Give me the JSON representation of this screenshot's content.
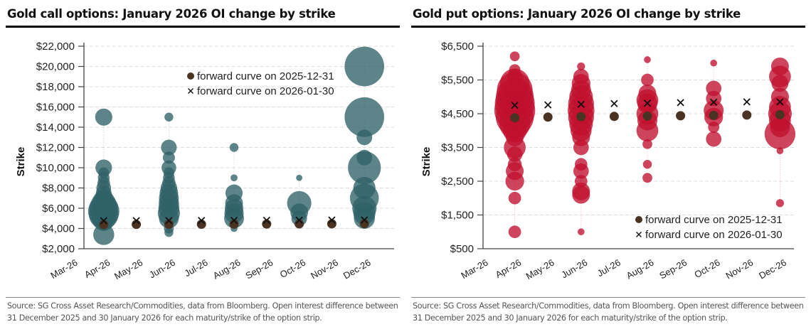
{
  "colors": {
    "call_bubble": "#2f6168",
    "put_bubble": "#c0102e",
    "forward_dot": "#4a3323",
    "forward_x": "#111111",
    "grid": "#dddddd",
    "axis": "#444444"
  },
  "chart_data": [
    {
      "type": "scatter",
      "title": "Gold call options: January 2026 OI change by strike",
      "xlabel": "",
      "ylabel": "Strike",
      "ylim": [
        2000,
        22000
      ],
      "yticks": [
        2000,
        4000,
        6000,
        8000,
        10000,
        12000,
        14000,
        16000,
        18000,
        20000,
        22000
      ],
      "ytick_labels": [
        "$2,000",
        "$4,000",
        "$6,000",
        "$8,000",
        "$10,000",
        "$12,000",
        "$14,000",
        "$16,000",
        "$18,000",
        "$20,000",
        "$22,000"
      ],
      "categories": [
        "Mar-26",
        "Apr-26",
        "May-26",
        "Jun-26",
        "Jul-26",
        "Aug-26",
        "Sep-26",
        "Oct-26",
        "Nov-26",
        "Dec-26"
      ],
      "grid": true,
      "legend_position": "top-right",
      "legend": [
        "forward curve on 2025-12-31",
        "forward curve on 2026-01-30"
      ],
      "source": "Source: SG Cross Asset Research/Commodities, data from Bloomberg. Open interest difference between 31 December 2025 and 30 January 2026 for each maturity/strike of the option strip.",
      "series": [
        {
          "name": "forward curve on 2025-12-31",
          "marker": "dot",
          "points": [
            {
              "x": "Apr-26",
              "y": 4380
            },
            {
              "x": "May-26",
              "y": 4400
            },
            {
              "x": "Jun-26",
              "y": 4410
            },
            {
              "x": "Jul-26",
              "y": 4420
            },
            {
              "x": "Aug-26",
              "y": 4430
            },
            {
              "x": "Sep-26",
              "y": 4440
            },
            {
              "x": "Oct-26",
              "y": 4450
            },
            {
              "x": "Nov-26",
              "y": 4460
            },
            {
              "x": "Dec-26",
              "y": 4470
            }
          ]
        },
        {
          "name": "forward curve on 2026-01-30",
          "marker": "x",
          "points": [
            {
              "x": "Apr-26",
              "y": 4760
            },
            {
              "x": "May-26",
              "y": 4770
            },
            {
              "x": "Jun-26",
              "y": 4780
            },
            {
              "x": "Jul-26",
              "y": 4790
            },
            {
              "x": "Aug-26",
              "y": 4800
            },
            {
              "x": "Sep-26",
              "y": 4810
            },
            {
              "x": "Oct-26",
              "y": 4820
            },
            {
              "x": "Nov-26",
              "y": 4830
            },
            {
              "x": "Dec-26",
              "y": 4840
            }
          ]
        },
        {
          "name": "OI change",
          "marker": "bubble",
          "points": [
            {
              "x": "Apr-26",
              "y": 15000,
              "size": 0.3
            },
            {
              "x": "Apr-26",
              "y": 10000,
              "size": 0.28
            },
            {
              "x": "Apr-26",
              "y": 9500,
              "size": 0.12
            },
            {
              "x": "Apr-26",
              "y": 9000,
              "size": 0.14
            },
            {
              "x": "Apr-26",
              "y": 8500,
              "size": 0.16
            },
            {
              "x": "Apr-26",
              "y": 8000,
              "size": 0.22
            },
            {
              "x": "Apr-26",
              "y": 7500,
              "size": 0.25
            },
            {
              "x": "Apr-26",
              "y": 7000,
              "size": 0.35
            },
            {
              "x": "Apr-26",
              "y": 6500,
              "size": 0.6
            },
            {
              "x": "Apr-26",
              "y": 6000,
              "size": 0.85
            },
            {
              "x": "Apr-26",
              "y": 5700,
              "size": 1.0
            },
            {
              "x": "Apr-26",
              "y": 5400,
              "size": 0.9
            },
            {
              "x": "Apr-26",
              "y": 5000,
              "size": 0.6
            },
            {
              "x": "Apr-26",
              "y": 4600,
              "size": 0.3
            },
            {
              "x": "Apr-26",
              "y": 3400,
              "size": 0.45
            },
            {
              "x": "Jun-26",
              "y": 15000,
              "size": 0.08
            },
            {
              "x": "Jun-26",
              "y": 12000,
              "size": 0.25
            },
            {
              "x": "Jun-26",
              "y": 11000,
              "size": 0.15
            },
            {
              "x": "Jun-26",
              "y": 10000,
              "size": 0.22
            },
            {
              "x": "Jun-26",
              "y": 9500,
              "size": 0.12
            },
            {
              "x": "Jun-26",
              "y": 9000,
              "size": 0.14
            },
            {
              "x": "Jun-26",
              "y": 8500,
              "size": 0.18
            },
            {
              "x": "Jun-26",
              "y": 8000,
              "size": 0.28
            },
            {
              "x": "Jun-26",
              "y": 7500,
              "size": 0.35
            },
            {
              "x": "Jun-26",
              "y": 7000,
              "size": 0.4
            },
            {
              "x": "Jun-26",
              "y": 6500,
              "size": 0.42
            },
            {
              "x": "Jun-26",
              "y": 6000,
              "size": 0.45
            },
            {
              "x": "Jun-26",
              "y": 5500,
              "size": 0.5
            },
            {
              "x": "Jun-26",
              "y": 5000,
              "size": 0.4
            },
            {
              "x": "Jun-26",
              "y": 4000,
              "size": 0.1
            },
            {
              "x": "Jun-26",
              "y": 3600,
              "size": 0.08
            },
            {
              "x": "Aug-26",
              "y": 12000,
              "size": 0.08
            },
            {
              "x": "Aug-26",
              "y": 9000,
              "size": 0.05
            },
            {
              "x": "Aug-26",
              "y": 7500,
              "size": 0.3
            },
            {
              "x": "Aug-26",
              "y": 6500,
              "size": 0.32
            },
            {
              "x": "Aug-26",
              "y": 6000,
              "size": 0.35
            },
            {
              "x": "Aug-26",
              "y": 5500,
              "size": 0.38
            },
            {
              "x": "Aug-26",
              "y": 5000,
              "size": 0.4
            },
            {
              "x": "Aug-26",
              "y": 4000,
              "size": 0.05
            },
            {
              "x": "Oct-26",
              "y": 9000,
              "size": 0.04
            },
            {
              "x": "Oct-26",
              "y": 6500,
              "size": 0.6
            },
            {
              "x": "Oct-26",
              "y": 5600,
              "size": 0.32
            },
            {
              "x": "Oct-26",
              "y": 5000,
              "size": 0.25
            },
            {
              "x": "Dec-26",
              "y": 20000,
              "size": 1.6
            },
            {
              "x": "Dec-26",
              "y": 15000,
              "size": 1.6
            },
            {
              "x": "Dec-26",
              "y": 13000,
              "size": 0.25
            },
            {
              "x": "Dec-26",
              "y": 11000,
              "size": 0.25
            },
            {
              "x": "Dec-26",
              "y": 10000,
              "size": 1.1
            },
            {
              "x": "Dec-26",
              "y": 8000,
              "size": 0.5
            },
            {
              "x": "Dec-26",
              "y": 7000,
              "size": 0.85
            },
            {
              "x": "Dec-26",
              "y": 6000,
              "size": 0.6
            },
            {
              "x": "Dec-26",
              "y": 5500,
              "size": 0.5
            },
            {
              "x": "Dec-26",
              "y": 5000,
              "size": 0.45
            }
          ]
        }
      ]
    },
    {
      "type": "scatter",
      "title": "Gold put options: January 2026 OI change by strike",
      "xlabel": "",
      "ylabel": "Strike",
      "ylim": [
        500,
        6500
      ],
      "yticks": [
        500,
        1500,
        2500,
        3500,
        4500,
        5500,
        6500
      ],
      "ytick_labels": [
        "$500",
        "$1,500",
        "$2,500",
        "$3,500",
        "$4,500",
        "$5,500",
        "$6,500"
      ],
      "categories": [
        "Mar-26",
        "Apr-26",
        "May-26",
        "Jun-26",
        "Jul-26",
        "Aug-26",
        "Sep-26",
        "Oct-26",
        "Nov-26",
        "Dec-26"
      ],
      "grid": true,
      "legend_position": "bottom-right",
      "legend": [
        "forward curve on 2025-12-31",
        "forward curve on 2026-01-30"
      ],
      "source": "Source: SG Cross Asset Research/Commodities, data from Bloomberg. Open interest difference between 31 December 2025 and 30 January 2026 for each maturity/strike of the option strip.",
      "series": [
        {
          "name": "forward curve on 2025-12-31",
          "marker": "dot",
          "points": [
            {
              "x": "Apr-26",
              "y": 4380
            },
            {
              "x": "May-26",
              "y": 4400
            },
            {
              "x": "Jun-26",
              "y": 4410
            },
            {
              "x": "Jul-26",
              "y": 4420
            },
            {
              "x": "Aug-26",
              "y": 4430
            },
            {
              "x": "Sep-26",
              "y": 4440
            },
            {
              "x": "Oct-26",
              "y": 4450
            },
            {
              "x": "Nov-26",
              "y": 4460
            },
            {
              "x": "Dec-26",
              "y": 4470
            }
          ]
        },
        {
          "name": "forward curve on 2026-01-30",
          "marker": "x",
          "points": [
            {
              "x": "Apr-26",
              "y": 4750
            },
            {
              "x": "May-26",
              "y": 4760
            },
            {
              "x": "Jun-26",
              "y": 4780
            },
            {
              "x": "Jul-26",
              "y": 4800
            },
            {
              "x": "Aug-26",
              "y": 4810
            },
            {
              "x": "Sep-26",
              "y": 4830
            },
            {
              "x": "Oct-26",
              "y": 4840
            },
            {
              "x": "Nov-26",
              "y": 4850
            },
            {
              "x": "Dec-26",
              "y": 4850
            }
          ]
        },
        {
          "name": "OI change",
          "marker": "bubble",
          "points": [
            {
              "x": "Apr-26",
              "y": 6200,
              "size": 0.06
            },
            {
              "x": "Apr-26",
              "y": 5800,
              "size": 0.08
            },
            {
              "x": "Apr-26",
              "y": 5600,
              "size": 0.15
            },
            {
              "x": "Apr-26",
              "y": 5400,
              "size": 0.55
            },
            {
              "x": "Apr-26",
              "y": 5200,
              "size": 0.8
            },
            {
              "x": "Apr-26",
              "y": 5000,
              "size": 0.9
            },
            {
              "x": "Apr-26",
              "y": 4800,
              "size": 1.0
            },
            {
              "x": "Apr-26",
              "y": 4600,
              "size": 1.05
            },
            {
              "x": "Apr-26",
              "y": 4400,
              "size": 0.9
            },
            {
              "x": "Apr-26",
              "y": 4200,
              "size": 0.6
            },
            {
              "x": "Apr-26",
              "y": 4000,
              "size": 0.35
            },
            {
              "x": "Apr-26",
              "y": 3800,
              "size": 0.2
            },
            {
              "x": "Apr-26",
              "y": 3500,
              "size": 0.3
            },
            {
              "x": "Apr-26",
              "y": 3300,
              "size": 0.15
            },
            {
              "x": "Apr-26",
              "y": 3000,
              "size": 0.12
            },
            {
              "x": "Apr-26",
              "y": 2800,
              "size": 0.2
            },
            {
              "x": "Apr-26",
              "y": 2500,
              "size": 0.22
            },
            {
              "x": "Apr-26",
              "y": 2000,
              "size": 0.1
            },
            {
              "x": "Apr-26",
              "y": 1000,
              "size": 0.1
            },
            {
              "x": "Jun-26",
              "y": 5900,
              "size": 0.04
            },
            {
              "x": "Jun-26",
              "y": 5600,
              "size": 0.15
            },
            {
              "x": "Jun-26",
              "y": 5400,
              "size": 0.22
            },
            {
              "x": "Jun-26",
              "y": 5200,
              "size": 0.25
            },
            {
              "x": "Jun-26",
              "y": 5000,
              "size": 0.35
            },
            {
              "x": "Jun-26",
              "y": 4800,
              "size": 0.42
            },
            {
              "x": "Jun-26",
              "y": 4600,
              "size": 0.45
            },
            {
              "x": "Jun-26",
              "y": 4400,
              "size": 0.42
            },
            {
              "x": "Jun-26",
              "y": 4200,
              "size": 0.35
            },
            {
              "x": "Jun-26",
              "y": 4000,
              "size": 0.28
            },
            {
              "x": "Jun-26",
              "y": 3800,
              "size": 0.2
            },
            {
              "x": "Jun-26",
              "y": 3500,
              "size": 0.15
            },
            {
              "x": "Jun-26",
              "y": 3000,
              "size": 0.1
            },
            {
              "x": "Jun-26",
              "y": 2800,
              "size": 0.15
            },
            {
              "x": "Jun-26",
              "y": 2500,
              "size": 0.1
            },
            {
              "x": "Jun-26",
              "y": 2200,
              "size": 0.2
            },
            {
              "x": "Jun-26",
              "y": 2100,
              "size": 0.2
            },
            {
              "x": "Jun-26",
              "y": 1000,
              "size": 0.03
            },
            {
              "x": "Aug-26",
              "y": 6100,
              "size": 0.03
            },
            {
              "x": "Aug-26",
              "y": 5500,
              "size": 0.1
            },
            {
              "x": "Aug-26",
              "y": 5100,
              "size": 0.2
            },
            {
              "x": "Aug-26",
              "y": 4900,
              "size": 0.3
            },
            {
              "x": "Aug-26",
              "y": 4800,
              "size": 0.25
            },
            {
              "x": "Aug-26",
              "y": 4500,
              "size": 0.3
            },
            {
              "x": "Aug-26",
              "y": 4300,
              "size": 0.25
            },
            {
              "x": "Aug-26",
              "y": 4000,
              "size": 0.3
            },
            {
              "x": "Aug-26",
              "y": 3600,
              "size": 0.06
            },
            {
              "x": "Aug-26",
              "y": 3000,
              "size": 0.05
            },
            {
              "x": "Aug-26",
              "y": 2600,
              "size": 0.06
            },
            {
              "x": "Oct-26",
              "y": 6000,
              "size": 0.03
            },
            {
              "x": "Oct-26",
              "y": 5250,
              "size": 0.15
            },
            {
              "x": "Oct-26",
              "y": 4950,
              "size": 0.15
            },
            {
              "x": "Oct-26",
              "y": 4600,
              "size": 0.25
            },
            {
              "x": "Oct-26",
              "y": 4400,
              "size": 0.22
            },
            {
              "x": "Oct-26",
              "y": 4100,
              "size": 0.08
            },
            {
              "x": "Oct-26",
              "y": 3750,
              "size": 0.15
            },
            {
              "x": "Dec-26",
              "y": 5900,
              "size": 0.2
            },
            {
              "x": "Dec-26",
              "y": 5600,
              "size": 0.3
            },
            {
              "x": "Dec-26",
              "y": 5400,
              "size": 0.18
            },
            {
              "x": "Dec-26",
              "y": 5000,
              "size": 0.2
            },
            {
              "x": "Dec-26",
              "y": 4700,
              "size": 0.3
            },
            {
              "x": "Dec-26",
              "y": 4500,
              "size": 0.35
            },
            {
              "x": "Dec-26",
              "y": 4300,
              "size": 0.3
            },
            {
              "x": "Dec-26",
              "y": 4100,
              "size": 0.25
            },
            {
              "x": "Dec-26",
              "y": 3900,
              "size": 0.6
            },
            {
              "x": "Dec-26",
              "y": 3400,
              "size": 0.03
            },
            {
              "x": "Dec-26",
              "y": 1850,
              "size": 0.04
            }
          ]
        }
      ]
    }
  ]
}
